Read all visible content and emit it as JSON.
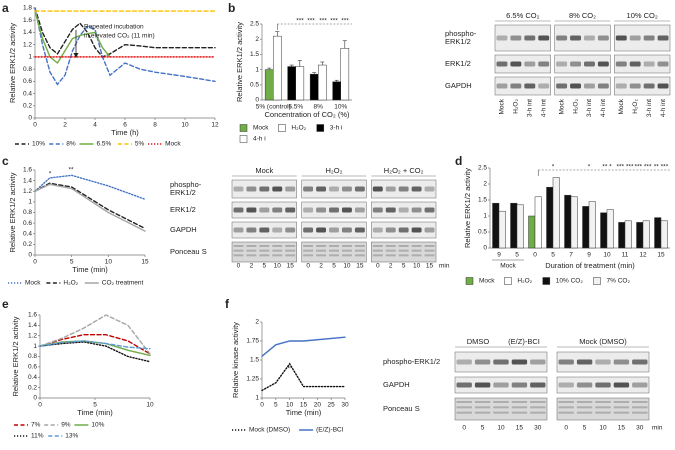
{
  "chart_data": [
    {
      "type": "line",
      "label": "a",
      "ylabel": "Relative ERK1/2 activity",
      "xlabel": "Time (h)",
      "x": [
        0,
        0.5,
        1,
        1.5,
        2,
        2.5,
        3,
        3.5,
        4,
        4.5,
        5,
        6,
        7,
        8,
        10,
        12
      ],
      "xlim": [
        0,
        12
      ],
      "xticks": [
        0,
        2,
        4,
        6,
        8,
        10,
        12
      ],
      "ylim": [
        0,
        1.8
      ],
      "yticks": [
        0,
        0.2,
        0.4,
        0.6,
        0.8,
        1,
        1.2,
        1.4,
        1.6,
        1.8
      ],
      "series": [
        {
          "name": "10%",
          "color": "#222222",
          "style": "dashed",
          "values": [
            1.8,
            1.4,
            1.15,
            1.05,
            1.25,
            1.45,
            1.55,
            1.4,
            1.15,
            1.0,
            1.05,
            1.2,
            1.18,
            1.15,
            1.15,
            1.15
          ]
        },
        {
          "name": "8%",
          "color": "#4472c4",
          "style": "dashed",
          "values": [
            1.8,
            1.2,
            0.75,
            0.55,
            0.7,
            1.1,
            1.35,
            1.5,
            1.45,
            1.0,
            0.7,
            0.9,
            0.8,
            0.75,
            0.68,
            0.6
          ]
        },
        {
          "name": "6.5%",
          "color": "#70ad47",
          "style": "solid",
          "values": [
            1.75,
            1.3,
            1.0,
            0.9,
            1.1,
            1.3,
            1.35,
            1.38,
            1.4,
            1.15,
            1.0,
            null,
            null,
            null,
            null,
            null
          ]
        },
        {
          "name": "5%",
          "color": "#ffc000",
          "style": "dashed",
          "values": [
            1.75,
            1.75,
            1.75,
            1.75,
            1.75,
            1.75,
            1.75,
            1.75,
            1.75,
            1.75,
            1.75,
            1.75,
            1.75,
            1.75,
            1.75,
            1.75
          ]
        },
        {
          "name": "Mock",
          "color": "#e00000",
          "style": "dotted",
          "values": [
            1,
            1,
            1,
            1,
            1,
            1,
            1,
            1,
            1,
            1,
            1,
            1,
            1,
            1,
            1,
            1
          ]
        }
      ],
      "annotations": [
        "Repeated incubation",
        "in elevated CO₂ (11 min)"
      ]
    },
    {
      "type": "bar",
      "label": "b",
      "ylabel": "Relative ERK1/2 activity",
      "xlabel": "Concentration of CO₂ (%)",
      "categories": [
        "5% (control)",
        "6.5%",
        "8%",
        "10%"
      ],
      "ylim": [
        0,
        2.5
      ],
      "yticks": [
        0,
        0.5,
        1,
        1.5,
        2,
        2.5
      ],
      "series": [
        {
          "name": "Mock",
          "color": "#70ad47",
          "values": [
            1.0,
            null,
            null,
            null
          ],
          "errors": [
            0.05,
            null,
            null,
            null
          ]
        },
        {
          "name": "H₂O₂",
          "color": "#ffffff",
          "values": [
            2.1,
            null,
            null,
            null
          ],
          "errors": [
            0.15,
            null,
            null,
            null
          ]
        },
        {
          "name": "3-h i",
          "color": "#000000",
          "values": [
            null,
            1.1,
            0.85,
            0.6
          ],
          "errors": [
            null,
            0.05,
            0.05,
            0.05
          ]
        },
        {
          "name": "4-h i",
          "color": "#ffffff",
          "values": [
            null,
            1.1,
            1.15,
            1.7
          ],
          "errors": [
            null,
            0.2,
            0.1,
            0.25
          ]
        }
      ],
      "annotations": [
        "***",
        "***",
        "***",
        "***",
        "***"
      ]
    },
    {
      "type": "line",
      "label": "c",
      "ylabel": "Relative ERK1/2 activity",
      "xlabel": "Time (min)",
      "x": [
        0,
        2,
        5,
        10,
        15
      ],
      "xlim": [
        0,
        15
      ],
      "xticks": [
        0,
        5,
        10,
        15
      ],
      "ylim": [
        0,
        1.6
      ],
      "yticks": [
        0,
        0.2,
        0.4,
        0.6,
        0.8,
        1,
        1.2,
        1.4,
        1.6
      ],
      "series": [
        {
          "name": "Mock",
          "color": "#4472c4",
          "style": "dotted",
          "values": [
            1.2,
            1.45,
            1.5,
            1.3,
            1.05
          ]
        },
        {
          "name": "H₂O₂",
          "color": "#222222",
          "style": "dashed",
          "values": [
            1.2,
            1.35,
            1.28,
            0.85,
            0.5
          ]
        },
        {
          "name": "CO₂ treatment",
          "color": "#a5a5a5",
          "style": "solid",
          "values": [
            1.2,
            1.33,
            1.25,
            0.8,
            0.45
          ]
        }
      ],
      "annotations": [
        "*",
        "**"
      ]
    },
    {
      "type": "bar",
      "label": "d",
      "ylabel": "Relative ERK1/2 activity",
      "xlabel": "Duration of treatment (min)",
      "categories": [
        "9",
        "5",
        "0",
        "5",
        "7",
        "9",
        "10",
        "11",
        "12",
        "15"
      ],
      "group_label": "Mock",
      "ylim": [
        0,
        2.5
      ],
      "yticks": [
        0,
        0.5,
        1,
        1.5,
        2,
        2.5
      ],
      "series": [
        {
          "name": "Mock",
          "color": "#70ad47",
          "values": [
            null,
            null,
            1.0,
            null,
            null,
            null,
            null,
            null,
            null,
            null
          ]
        },
        {
          "name": "H₂O₂",
          "color": "#ffffff",
          "values": [
            null,
            null,
            1.6,
            null,
            null,
            null,
            null,
            null,
            null,
            null
          ]
        },
        {
          "name": "10% CO₂",
          "color": "#111111",
          "values": [
            1.4,
            1.4,
            null,
            1.9,
            1.65,
            1.3,
            1.1,
            0.8,
            0.8,
            0.95
          ]
        },
        {
          "name": "7% CO₂",
          "color": "#f2f2f2",
          "values": [
            1.15,
            1.35,
            null,
            2.2,
            1.6,
            1.45,
            1.2,
            0.85,
            0.85,
            0.85
          ]
        }
      ],
      "annotations": [
        "*",
        "*",
        "** *",
        "*** ***",
        "*** ***",
        "** ***"
      ]
    },
    {
      "type": "line",
      "label": "e",
      "ylabel": "Relative ERK1/2 activity",
      "xlabel": "Time (min)",
      "x": [
        0,
        2,
        4,
        6,
        8,
        10
      ],
      "xlim": [
        0,
        10
      ],
      "xticks": [
        0,
        5,
        10
      ],
      "ylim": [
        0,
        1.6
      ],
      "yticks": [
        0,
        0.2,
        0.4,
        0.6,
        0.8,
        1,
        1.2,
        1.4,
        1.6
      ],
      "series": [
        {
          "name": "7%",
          "color": "#c00000",
          "style": "dashed",
          "values": [
            1,
            1.13,
            1.22,
            1.22,
            1.1,
            0.85
          ]
        },
        {
          "name": "9%",
          "color": "#a5a5a5",
          "style": "dashed",
          "values": [
            1,
            1.15,
            1.35,
            1.6,
            1.4,
            0.85
          ]
        },
        {
          "name": "10%",
          "color": "#70ad47",
          "style": "solid",
          "values": [
            1,
            1.08,
            1.1,
            1.05,
            0.92,
            0.82
          ]
        },
        {
          "name": "11%",
          "color": "#111111",
          "style": "dotted",
          "values": [
            1,
            1.05,
            1.08,
            1.0,
            0.8,
            0.7
          ]
        },
        {
          "name": "13%",
          "color": "#5b9bd5",
          "style": "dashed",
          "values": [
            1,
            1.07,
            1.1,
            1.05,
            0.98,
            0.95
          ]
        }
      ]
    },
    {
      "type": "line",
      "label": "f",
      "ylabel": "Relative kinase activity",
      "xlabel": "Time (min)",
      "x": [
        0,
        5,
        10,
        15,
        30
      ],
      "xlim": [
        0,
        30
      ],
      "xticks": [
        0,
        5,
        10,
        15,
        20,
        25,
        30
      ],
      "ylim": [
        1,
        2
      ],
      "yticks": [
        1,
        1.25,
        1.5,
        1.75,
        2
      ],
      "series": [
        {
          "name": "Mock (DMSO)",
          "color": "#111111",
          "style": "dotted",
          "values": [
            1.1,
            1.2,
            1.45,
            1.15,
            1.15
          ]
        },
        {
          "name": "(E/Z)-BCI",
          "color": "#4472c4",
          "style": "solid",
          "values": [
            1.55,
            1.7,
            1.75,
            1.75,
            1.8
          ]
        }
      ],
      "annotations": [
        "**"
      ]
    }
  ],
  "blots": [
    {
      "headers": [
        [
          "6.5% CO₂"
        ],
        [
          "8% CO₂"
        ],
        [
          "10% CO₂"
        ]
      ],
      "rows": [
        [
          "phospho-",
          "ERK1/2"
        ],
        [
          "ERK1/2"
        ],
        [
          "GAPDH"
        ]
      ],
      "lanes": [
        "Mock",
        "H₂O₂",
        "3-h int",
        "4-h int"
      ]
    },
    {
      "headers": [
        [
          "Mock"
        ],
        [
          "H₂O₂"
        ],
        [
          "H₂O₂ + CO₂"
        ]
      ],
      "rows": [
        [
          "phospho-",
          "ERK1/2"
        ],
        [
          "ERK1/2"
        ],
        [
          "GAPDH"
        ],
        [
          "Ponceau S"
        ]
      ],
      "lanes": [
        "0",
        "2",
        "5",
        "10",
        "15"
      ],
      "unit": "min"
    },
    {
      "headers": [
        [
          "DMSO",
          "(E/Z)-BCI"
        ],
        [
          "Mock (DMSO)"
        ]
      ],
      "rows": [
        [
          "phospho-ERK1/2"
        ],
        [
          "GAPDH"
        ],
        [
          "Ponceau S"
        ]
      ],
      "lanes": [
        "0",
        "5",
        "10",
        "15",
        "30"
      ],
      "unit": "min"
    }
  ]
}
